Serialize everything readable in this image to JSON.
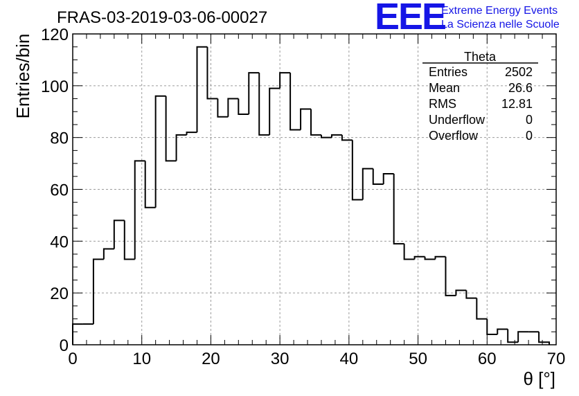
{
  "chart_data": {
    "type": "bar",
    "title": "FRAS-03-2019-03-06-00027",
    "xlabel": "θ [°]",
    "ylabel": "Entries/bin",
    "xlim": [
      0,
      70
    ],
    "ylim": [
      0,
      120
    ],
    "x_ticks": [
      0,
      10,
      20,
      30,
      40,
      50,
      60,
      70
    ],
    "y_ticks": [
      0,
      20,
      40,
      60,
      80,
      100,
      120
    ],
    "grid": true,
    "bin_width": 1.5,
    "bin_start": 0,
    "values": [
      8,
      8,
      33,
      37,
      48,
      33,
      71,
      53,
      96,
      71,
      81,
      82,
      115,
      95,
      88,
      95,
      89,
      105,
      81,
      99,
      105,
      83,
      91,
      81,
      80,
      81,
      79,
      56,
      68,
      62,
      66,
      39,
      33,
      34,
      33,
      34,
      19,
      21,
      18,
      10,
      4,
      6,
      1,
      5,
      5,
      1
    ],
    "line_color": "#000000"
  },
  "stats_box": {
    "title": "Theta",
    "rows": [
      {
        "label": "Entries",
        "value": "2502"
      },
      {
        "label": "Mean",
        "value": "26.6"
      },
      {
        "label": "RMS",
        "value": "12.81"
      },
      {
        "label": "Underflow",
        "value": "0"
      },
      {
        "label": "Overflow",
        "value": "0"
      }
    ]
  },
  "logo": {
    "mark": "EEE",
    "line1": "Extreme Energy Events",
    "line2": "La Scienza nelle Scuole",
    "color": "#1515e6"
  }
}
